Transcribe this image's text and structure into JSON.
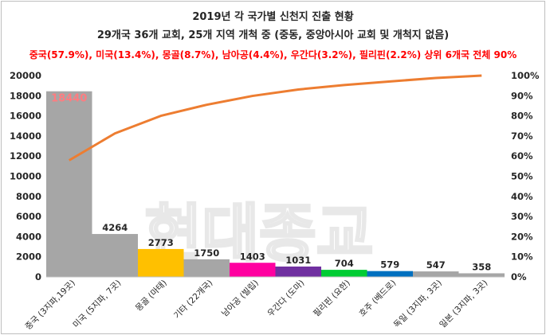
{
  "title_line1": "2019년 각 국가별 신천지 진출 현황",
  "title_line2": "29개국 36개 교회, 25개 지역 개척 중 (중동, 중앙아시아 교회 및 개척지 없음)",
  "title_line3": "중국(57.9%), 미국(13.4%), 몽골(8.7%), 남아공(4.4%), 우간다(3.2%), 필리핀(2.2%) 상위 6개국 전체 90%",
  "watermark": "현대종교",
  "colors": {
    "bar_default": "#a6a6a6",
    "line": "#ed7d31",
    "first_label": "#ff7c80",
    "subtitle": "#ff0000"
  },
  "chart_data": {
    "type": "bar",
    "categories": [
      "중국 (3지파,19곳)",
      "미국 (5지파, 7곳)",
      "몽골 (마태)",
      "기타 (22개국)",
      "남아공 (빌립)",
      "우간다 (도마)",
      "필리핀 (요한)",
      "호주 (베드로)",
      "독일 (3지파, 3곳)",
      "일본 (3지파, 3곳)"
    ],
    "values": [
      18440,
      4264,
      2773,
      1750,
      1403,
      1031,
      704,
      579,
      547,
      358
    ],
    "value_labels": [
      "18440",
      "4264",
      "2773",
      "1750",
      "1403",
      "1031",
      "704",
      "579",
      "547",
      "358"
    ],
    "bar_colors": [
      "#a6a6a6",
      "#a6a6a6",
      "#ffc000",
      "#a6a6a6",
      "#ff00a0",
      "#7030a0",
      "#00cc33",
      "#0070c0",
      "#a6a6a6",
      "#a6a6a6"
    ],
    "cumulative_percent": [
      57.9,
      71.3,
      80.0,
      85.5,
      89.9,
      93.1,
      95.3,
      97.1,
      98.8,
      100.0
    ],
    "ylim": [
      0,
      20000
    ],
    "yticks": [
      "0",
      "2000",
      "4000",
      "6000",
      "8000",
      "10000",
      "12000",
      "14000",
      "16000",
      "18000",
      "20000"
    ],
    "y2lim": [
      0,
      100
    ],
    "y2ticks": [
      "0%",
      "10%",
      "20%",
      "30%",
      "40%",
      "50%",
      "60%",
      "70%",
      "80%",
      "90%",
      "100%"
    ],
    "grid": false
  }
}
